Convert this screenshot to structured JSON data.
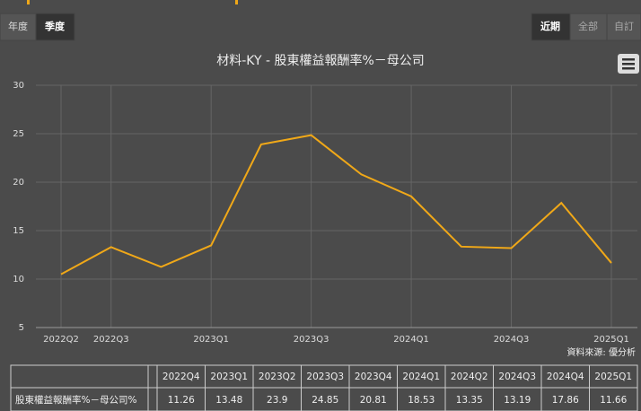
{
  "ui": {
    "period_tabs": [
      "年度",
      "季度"
    ],
    "range_tabs": [
      "近期",
      "全部",
      "自訂"
    ],
    "source": "資料來源: 優分析"
  },
  "chart_data": {
    "type": "line",
    "title": "材料-KY - 股東權益報酬率%－母公司",
    "categories": [
      "2022Q2",
      "2022Q3",
      null,
      "2023Q1",
      null,
      "2023Q3",
      null,
      "2024Q1",
      null,
      "2024Q3",
      null,
      "2025Q1"
    ],
    "series": [
      {
        "name": "股東權益報酬率%－母公司%",
        "color": "#f0a818",
        "values": [
          10.5,
          13.3,
          11.26,
          13.48,
          23.9,
          24.85,
          20.81,
          18.53,
          13.35,
          13.19,
          17.86,
          11.66
        ]
      }
    ],
    "ylim": [
      5,
      30
    ],
    "yticks": [
      5,
      10,
      15,
      20,
      25,
      30
    ],
    "grid": true
  },
  "table": {
    "columns": [
      "2022Q4",
      "2023Q1",
      "2023Q2",
      "2023Q3",
      "2023Q4",
      "2024Q1",
      "2024Q2",
      "2024Q3",
      "2024Q4",
      "2025Q1"
    ]
  }
}
